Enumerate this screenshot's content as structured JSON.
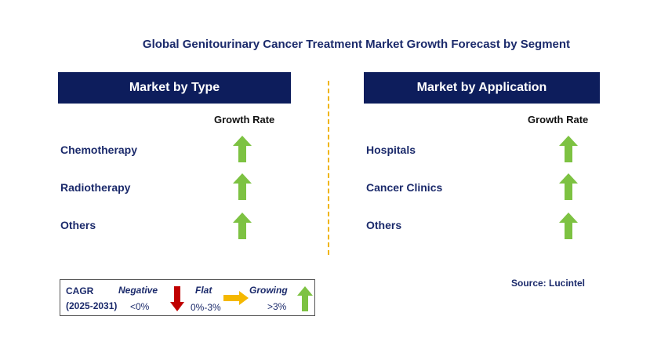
{
  "title": "Global Genitourinary Cancer Treatment Market Growth Forecast by Segment",
  "left_panel": {
    "header": "Market by Type",
    "column_header": "Growth Rate",
    "rows": [
      {
        "label": "Chemotherapy",
        "trend": "growing"
      },
      {
        "label": "Radiotherapy",
        "trend": "growing"
      },
      {
        "label": "Others",
        "trend": "growing"
      }
    ]
  },
  "right_panel": {
    "header": "Market by Application",
    "column_header": "Growth Rate",
    "rows": [
      {
        "label": "Hospitals",
        "trend": "growing"
      },
      {
        "label": "Cancer Clinics",
        "trend": "growing"
      },
      {
        "label": "Others",
        "trend": "growing"
      }
    ]
  },
  "legend": {
    "cagr_label": "CAGR",
    "period": "(2025-2031)",
    "negative_label": "Negative",
    "negative_range": "<0%",
    "flat_label": "Flat",
    "flat_range": "0%-3%",
    "growing_label": "Growing",
    "growing_range": ">3%"
  },
  "source": "Source: Lucintel",
  "colors": {
    "header_bg": "#0d1d5c",
    "growing_arrow": "#7dc242",
    "negative_arrow": "#c00000",
    "flat_arrow": "#f5b800",
    "divider": "#f0b400"
  }
}
